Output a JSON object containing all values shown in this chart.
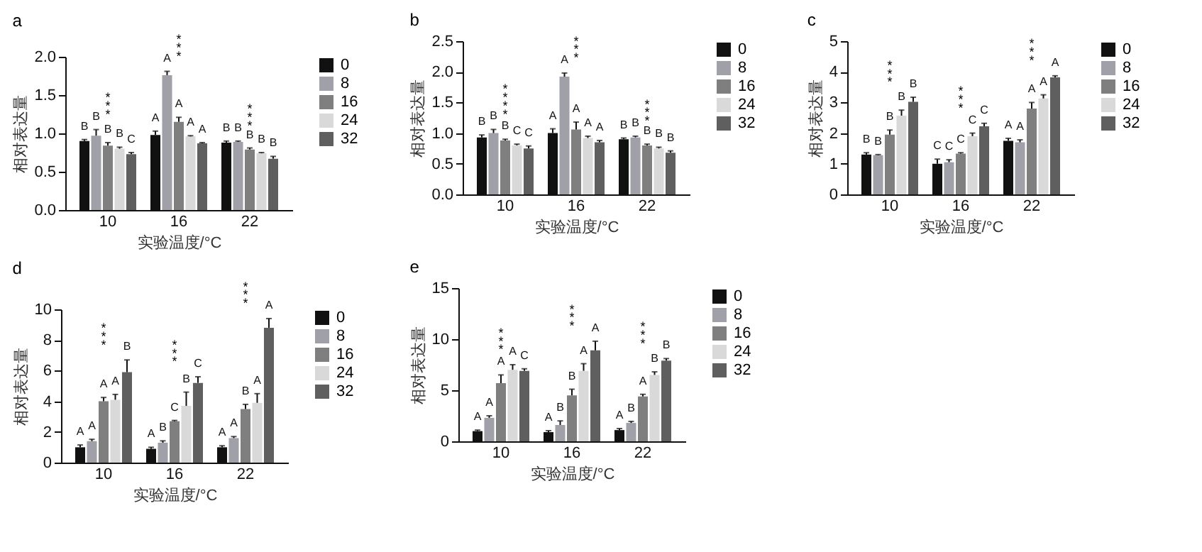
{
  "chart_data": [
    {
      "type": "bar",
      "title": "a",
      "xlabel": "实验温度/°C",
      "ylabel": "相对表达量",
      "categories": [
        "10",
        "16",
        "22"
      ],
      "ylim": [
        0,
        2
      ],
      "yticks": [
        {
          "value": 0,
          "label": "0.0"
        },
        0.5,
        {
          "value": 1,
          "label": "1.0"
        },
        1.5,
        {
          "value": 2,
          "label": "2.0"
        }
      ],
      "grid": false,
      "legend": "right",
      "series": [
        {
          "name": "0",
          "color": "#111111",
          "values": [
            0.9,
            0.98,
            0.88
          ],
          "errors": [
            0.02,
            0.05,
            0.02
          ],
          "value_labels": [
            "B",
            "A",
            "B"
          ]
        },
        {
          "name": "8",
          "color": "#a0a0a8",
          "values": [
            0.97,
            1.76,
            0.89
          ],
          "errors": [
            0.08,
            0.05,
            0.01
          ],
          "value_labels": [
            "B",
            "A",
            "B"
          ]
        },
        {
          "name": "16",
          "color": "#7f7f7f",
          "values": [
            0.84,
            1.15,
            0.79
          ],
          "errors": [
            0.04,
            0.06,
            0.02
          ],
          "value_labels": [
            "B",
            "A",
            "B"
          ]
        },
        {
          "name": "24",
          "color": "#d9d9d9",
          "values": [
            0.8,
            0.96,
            0.74
          ],
          "errors": [
            0.02,
            0.01,
            0.01
          ],
          "value_labels": [
            "B",
            "A",
            "B"
          ]
        },
        {
          "name": "32",
          "color": "#5f5f5f",
          "values": [
            0.73,
            0.87,
            0.67
          ],
          "errors": [
            0.02,
            0.01,
            0.03
          ],
          "value_labels": [
            "C",
            "A",
            "B"
          ]
        }
      ],
      "annotations": [
        "*",
        "*",
        "*",
        "*",
        "*",
        "*",
        "*",
        "*",
        "*"
      ]
    },
    {
      "type": "bar",
      "title": "b",
      "xlabel": "实验温度/°C",
      "ylabel": "相对表达量",
      "categories": [
        "10",
        "16",
        "22"
      ],
      "ylim": [
        0,
        2.5
      ],
      "yticks": [
        {
          "value": 0,
          "label": "0.0"
        },
        0.5,
        {
          "value": 1,
          "label": "1.0"
        },
        1.5,
        {
          "value": 2,
          "label": "2.0"
        },
        2.5
      ],
      "grid": false,
      "legend": "right",
      "series": [
        {
          "name": "0",
          "color": "#111111",
          "values": [
            0.93,
            1.0,
            0.9
          ],
          "errors": [
            0.04,
            0.07,
            0.02
          ],
          "value_labels": [
            "B",
            "A",
            "B"
          ]
        },
        {
          "name": "8",
          "color": "#a0a0a8",
          "values": [
            1.0,
            1.92,
            0.93
          ],
          "errors": [
            0.06,
            0.06,
            0.02
          ],
          "value_labels": [
            "B",
            "A",
            "B"
          ]
        },
        {
          "name": "16",
          "color": "#7f7f7f",
          "values": [
            0.88,
            1.06,
            0.8
          ],
          "errors": [
            0.02,
            0.12,
            0.02
          ],
          "value_labels": [
            "B",
            "A",
            "B"
          ]
        },
        {
          "name": "24",
          "color": "#d9d9d9",
          "values": [
            0.8,
            0.92,
            0.75
          ],
          "errors": [
            0.02,
            0.03,
            0.02
          ],
          "value_labels": [
            "C",
            "A",
            "B"
          ]
        },
        {
          "name": "32",
          "color": "#5f5f5f",
          "values": [
            0.75,
            0.85,
            0.68
          ],
          "errors": [
            0.04,
            0.03,
            0.03
          ],
          "value_labels": [
            "C",
            "A",
            "B"
          ]
        }
      ],
      "annotations": [
        "*",
        "*",
        "*",
        "*",
        "*",
        "*",
        "*",
        "*",
        "*",
        "*"
      ]
    },
    {
      "type": "bar",
      "title": "c",
      "xlabel": "实验温度/°C",
      "ylabel": "相对表达量",
      "categories": [
        "10",
        "16",
        "22"
      ],
      "ylim": [
        0,
        5
      ],
      "yticks": [
        0,
        1,
        2,
        3,
        4,
        5
      ],
      "grid": false,
      "legend": "right",
      "series": [
        {
          "name": "0",
          "color": "#111111",
          "values": [
            1.3,
            1.0,
            1.75
          ],
          "errors": [
            0.06,
            0.15,
            0.08
          ],
          "value_labels": [
            "B",
            "C",
            "A"
          ]
        },
        {
          "name": "8",
          "color": "#a0a0a8",
          "values": [
            1.28,
            1.05,
            1.7
          ],
          "errors": [
            0.02,
            0.08,
            0.08
          ],
          "value_labels": [
            "B",
            "C",
            "A"
          ]
        },
        {
          "name": "16",
          "color": "#7f7f7f",
          "values": [
            1.95,
            1.33,
            2.8
          ],
          "errors": [
            0.15,
            0.03,
            0.2
          ],
          "value_labels": [
            "B",
            "C",
            "A"
          ]
        },
        {
          "name": "24",
          "color": "#d9d9d9",
          "values": [
            2.57,
            1.9,
            3.13
          ],
          "errors": [
            0.18,
            0.1,
            0.12
          ],
          "value_labels": [
            "B",
            "C",
            "A"
          ]
        },
        {
          "name": "32",
          "color": "#5f5f5f",
          "values": [
            3.02,
            2.22,
            3.82
          ],
          "errors": [
            0.15,
            0.1,
            0.05
          ],
          "value_labels": [
            "B",
            "C",
            "A"
          ]
        }
      ],
      "annotations": [
        "*",
        "*",
        "*",
        "*",
        "*",
        "*",
        "*",
        "*",
        "*"
      ]
    },
    {
      "type": "bar",
      "title": "d",
      "xlabel": "实验温度/°C",
      "ylabel": "相对表达量",
      "categories": [
        "10",
        "16",
        "22"
      ],
      "ylim": [
        0,
        10
      ],
      "yticks": [
        0,
        2,
        4,
        6,
        8,
        10
      ],
      "grid": false,
      "legend": "right",
      "series": [
        {
          "name": "0",
          "color": "#111111",
          "values": [
            1.0,
            0.9,
            1.0
          ],
          "errors": [
            0.15,
            0.1,
            0.1
          ],
          "value_labels": [
            "A",
            "A",
            "A"
          ]
        },
        {
          "name": "8",
          "color": "#a0a0a8",
          "values": [
            1.4,
            1.3,
            1.6
          ],
          "errors": [
            0.12,
            0.12,
            0.1
          ],
          "value_labels": [
            "A",
            "B",
            "A"
          ]
        },
        {
          "name": "16",
          "color": "#7f7f7f",
          "values": [
            4.0,
            2.7,
            3.5
          ],
          "errors": [
            0.25,
            0.05,
            0.3
          ],
          "value_labels": [
            "A",
            "C",
            "B"
          ]
        },
        {
          "name": "24",
          "color": "#d9d9d9",
          "values": [
            4.1,
            3.7,
            3.9
          ],
          "errors": [
            0.35,
            0.9,
            0.6
          ],
          "value_labels": [
            "A",
            "B",
            "A"
          ]
        },
        {
          "name": "32",
          "color": "#5f5f5f",
          "values": [
            5.9,
            5.2,
            8.8
          ],
          "errors": [
            0.8,
            0.4,
            0.6
          ],
          "value_labels": [
            "B",
            "C",
            "A"
          ]
        }
      ],
      "annotations": [
        "*",
        "*",
        "*",
        "*",
        "*",
        "*",
        "*",
        "*",
        "*"
      ]
    },
    {
      "type": "bar",
      "title": "e",
      "xlabel": "实验温度/°C",
      "ylabel": "相对表达量",
      "categories": [
        "10",
        "16",
        "22"
      ],
      "ylim": [
        0,
        15
      ],
      "yticks": [
        0,
        5,
        10,
        15
      ],
      "grid": false,
      "legend": "right",
      "series": [
        {
          "name": "0",
          "color": "#111111",
          "values": [
            1.0,
            0.9,
            1.1
          ],
          "errors": [
            0.1,
            0.15,
            0.15
          ],
          "value_labels": [
            "A",
            "A",
            "A"
          ]
        },
        {
          "name": "8",
          "color": "#a0a0a8",
          "values": [
            2.3,
            1.6,
            1.8
          ],
          "errors": [
            0.2,
            0.4,
            0.15
          ],
          "value_labels": [
            "A",
            "B",
            "B"
          ]
        },
        {
          "name": "16",
          "color": "#7f7f7f",
          "values": [
            5.7,
            4.5,
            4.4
          ],
          "errors": [
            0.8,
            0.6,
            0.2
          ],
          "value_labels": [
            "A",
            "B",
            "A"
          ]
        },
        {
          "name": "24",
          "color": "#d9d9d9",
          "values": [
            7.0,
            6.9,
            6.5
          ],
          "errors": [
            0.5,
            0.7,
            0.3
          ],
          "value_labels": [
            "A",
            "A",
            "B"
          ]
        },
        {
          "name": "32",
          "color": "#5f5f5f",
          "values": [
            6.9,
            8.9,
            7.9
          ],
          "errors": [
            0.2,
            0.9,
            0.2
          ],
          "value_labels": [
            "C",
            "A",
            "B"
          ]
        }
      ],
      "annotations": [
        "*",
        "*",
        "*",
        "*",
        "*",
        "*",
        "*",
        "*",
        "*"
      ]
    }
  ]
}
